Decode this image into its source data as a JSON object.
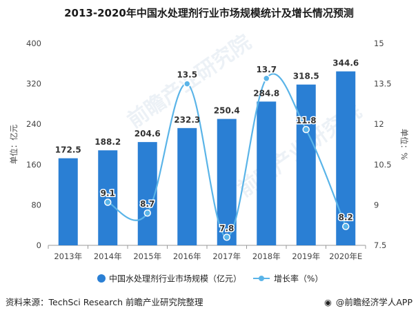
{
  "chart_data": {
    "type": "bar+line",
    "title": "2013-2020年中国水处理剂行业市场规模统计及增长情况预测",
    "categories": [
      "2013年",
      "2014年",
      "2015年",
      "2016年",
      "2017年",
      "2018年",
      "2019年",
      "2020年E"
    ],
    "series": [
      {
        "name": "中国水处理剂行业市场规模（亿元）",
        "type": "bar",
        "axis": "left",
        "color": "#2a7fd4",
        "values": [
          172.5,
          188.2,
          204.6,
          232.3,
          250.4,
          284.8,
          318.5,
          344.6
        ]
      },
      {
        "name": "增长率（%）",
        "type": "line",
        "axis": "right",
        "color": "#5ab4e8",
        "values": [
          null,
          9.1,
          8.7,
          13.5,
          7.8,
          13.7,
          11.8,
          8.2
        ]
      }
    ],
    "ylabel": "单位：亿元",
    "y2label": "单位：%",
    "ylim": [
      0,
      400
    ],
    "yticks": [
      "0",
      "80",
      "160",
      "240",
      "320",
      "400"
    ],
    "y2lim": [
      7.5,
      15
    ],
    "y2ticks": [
      "7.5",
      "9",
      "10.5",
      "12",
      "13.5",
      "15"
    ],
    "grid": false,
    "legend_position": "bottom"
  },
  "footer": {
    "source": "资料来源：TechSci Research 前瞻产业研究院整理",
    "brand": "@前瞻经济学人APP"
  },
  "watermark": {
    "text": "前瞻产业研究院"
  }
}
